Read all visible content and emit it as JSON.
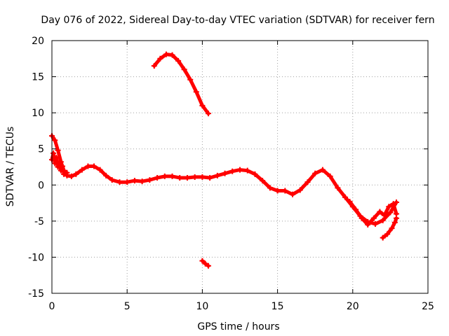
{
  "chart_data": {
    "type": "scatter",
    "title": "Day 076 of 2022, Sidereal Day-to-day VTEC variation (SDTVAR) for receiver fern",
    "xlabel": "GPS time / hours",
    "ylabel": "SDTVAR / TECUs",
    "xlim": [
      0,
      25
    ],
    "ylim": [
      -15,
      20
    ],
    "xticks": [
      0,
      5,
      10,
      15,
      20,
      25
    ],
    "yticks": [
      -15,
      -10,
      -5,
      0,
      5,
      10,
      15,
      20
    ],
    "xtick_labels": [
      "0",
      "5",
      "10",
      "15",
      "20",
      "25"
    ],
    "ytick_labels": [
      "-15",
      "-10",
      "-5",
      "0",
      "5",
      "10",
      "15",
      "20"
    ],
    "grid": true,
    "series_color": "#ff0000",
    "series": [
      {
        "name": "SDTVAR main trace",
        "x": [
          0.0,
          0.2,
          0.4,
          0.6,
          0.8,
          1.0,
          1.3,
          1.6,
          2.0,
          2.4,
          2.8,
          3.2,
          3.6,
          4.0,
          4.5,
          5.0,
          5.5,
          6.0,
          6.5,
          7.0,
          7.5,
          8.0,
          8.5,
          9.0,
          9.5,
          10.0,
          10.5,
          11.0,
          11.5,
          12.0,
          12.5,
          13.0,
          13.5,
          14.0,
          14.5,
          15.0,
          15.5,
          16.0,
          16.5,
          17.0,
          17.5,
          18.0,
          18.5,
          19.0,
          19.5,
          20.0,
          20.5,
          21.0,
          21.5,
          22.0,
          22.5,
          22.9
        ],
        "y": [
          6.8,
          6.2,
          4.8,
          3.2,
          2.0,
          1.3,
          1.2,
          1.5,
          2.1,
          2.6,
          2.6,
          2.1,
          1.3,
          0.7,
          0.4,
          0.4,
          0.6,
          0.5,
          0.7,
          1.0,
          1.2,
          1.2,
          1.0,
          1.0,
          1.1,
          1.1,
          1.0,
          1.3,
          1.6,
          1.9,
          2.1,
          2.0,
          1.5,
          0.6,
          -0.4,
          -0.8,
          -0.8,
          -1.3,
          -0.7,
          0.4,
          1.6,
          2.1,
          1.2,
          -0.4,
          -1.7,
          -3.0,
          -4.3,
          -5.1,
          -5.4,
          -4.9,
          -3.8,
          -2.4
        ]
      },
      {
        "name": "SDTVAR early scatter",
        "x": [
          0.0,
          0.1,
          0.2,
          0.3,
          0.4,
          0.5,
          0.6,
          0.7,
          0.8,
          1.0
        ],
        "y": [
          3.5,
          4.4,
          3.0,
          3.8,
          2.5,
          3.1,
          2.0,
          2.6,
          1.5,
          1.7
        ]
      },
      {
        "name": "SDTVAR late scatter",
        "x": [
          19.8,
          20.2,
          20.6,
          21.0,
          21.4,
          21.8,
          22.1,
          22.4,
          22.7,
          22.9
        ],
        "y": [
          -2.3,
          -3.4,
          -4.6,
          -5.5,
          -4.6,
          -3.7,
          -4.2,
          -3.0,
          -2.6,
          -4.0
        ]
      },
      {
        "name": "SDTVAR late branch",
        "x": [
          22.0,
          22.3,
          22.6,
          22.8,
          22.9
        ],
        "y": [
          -7.3,
          -6.8,
          -6.0,
          -5.2,
          -4.6
        ]
      },
      {
        "name": "SDTVAR upper arc",
        "x": [
          6.8,
          7.2,
          7.6,
          8.0,
          8.4,
          8.8,
          9.2,
          9.6,
          10.0,
          10.4
        ],
        "y": [
          16.5,
          17.5,
          18.1,
          18.0,
          17.2,
          16.0,
          14.6,
          12.9,
          11.0,
          9.9
        ]
      },
      {
        "name": "SDTVAR lower segment",
        "x": [
          10.0,
          10.2,
          10.4
        ],
        "y": [
          -10.5,
          -10.9,
          -11.2
        ]
      }
    ]
  }
}
